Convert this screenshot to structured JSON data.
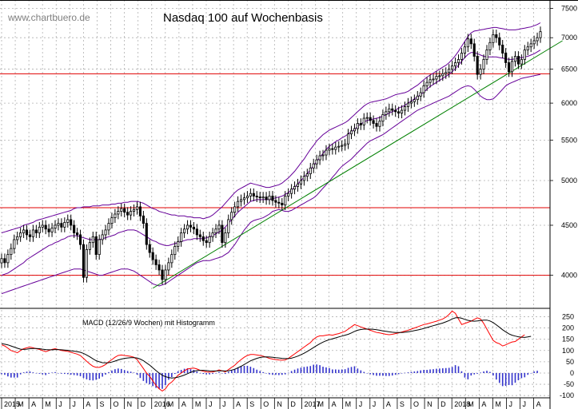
{
  "watermark": "www.chartbuero.de",
  "chart_data": [
    {
      "type": "candlestick",
      "title": "Nasdaq 100 auf Wochenbasis",
      "y_ticks": [
        4000,
        4500,
        5000,
        5500,
        6000,
        6500,
        7000,
        7500
      ],
      "y_tick_labels": [
        "4000",
        "4500",
        "5000",
        "5500",
        "6000",
        "6500",
        "7000",
        "7500"
      ],
      "ylim": [
        3700,
        7650
      ],
      "log_scale": true,
      "grid": true,
      "x_tick_labels": [
        "2015",
        "M",
        "A",
        "M",
        "J",
        "J",
        "A",
        "S",
        "O",
        "N",
        "D",
        "2016",
        "M",
        "A",
        "M",
        "J",
        "J",
        "A",
        "S",
        "O",
        "N",
        "D",
        "2017",
        "M",
        "A",
        "M",
        "J",
        "J",
        "A",
        "S",
        "O",
        "N",
        "D",
        "2018",
        "M",
        "A",
        "M",
        "J",
        "J",
        "A"
      ],
      "horizontal_lines": [
        4000,
        4690,
        6430
      ],
      "trendline": {
        "from": {
          "week": 48,
          "value": 3880
        },
        "to": {
          "week": 178,
          "value": 6950
        }
      },
      "weekly_close": [
        4160,
        4120,
        4200,
        4260,
        4350,
        4380,
        4420,
        4450,
        4400,
        4380,
        4450,
        4420,
        4480,
        4500,
        4460,
        4430,
        4470,
        4500,
        4520,
        4480,
        4530,
        4560,
        4500,
        4420,
        4400,
        4300,
        3980,
        4250,
        4320,
        4380,
        4200,
        4350,
        4400,
        4450,
        4520,
        4580,
        4620,
        4650,
        4680,
        4640,
        4610,
        4650,
        4670,
        4700,
        4600,
        4520,
        4300,
        4220,
        4150,
        4100,
        4050,
        3960,
        4050,
        4120,
        4200,
        4280,
        4330,
        4420,
        4460,
        4500,
        4480,
        4460,
        4400,
        4380,
        4340,
        4320,
        4380,
        4420,
        4460,
        4500,
        4320,
        4420,
        4560,
        4640,
        4700,
        4760,
        4780,
        4800,
        4820,
        4850,
        4820,
        4810,
        4800,
        4810,
        4780,
        4820,
        4770,
        4750,
        4740,
        4720,
        4820,
        4850,
        4900,
        4930,
        4960,
        5000,
        5050,
        5080,
        5150,
        5200,
        5250,
        5300,
        5310,
        5370,
        5390,
        5380,
        5410,
        5420,
        5430,
        5450,
        5580,
        5620,
        5650,
        5720,
        5700,
        5790,
        5800,
        5760,
        5720,
        5680,
        5750,
        5840,
        5880,
        5920,
        5900,
        5880,
        5860,
        5900,
        5950,
        6000,
        6020,
        6050,
        6100,
        6150,
        6250,
        6300,
        6340,
        6350,
        6390,
        6400,
        6430,
        6450,
        6500,
        6550,
        6600,
        6650,
        6750,
        6850,
        6980,
        6900,
        6700,
        6420,
        6500,
        6650,
        6800,
        6920,
        7050,
        7000,
        6880,
        6750,
        6600,
        6460,
        6620,
        6700,
        6580,
        6650,
        6800,
        6850,
        6900,
        6950,
        7000,
        7100
      ],
      "upper_band": [
        4420,
        4430,
        4440,
        4450,
        4460,
        4470,
        4480,
        4500,
        4510,
        4520,
        4530,
        4550,
        4560,
        4570,
        4580,
        4590,
        4600,
        4610,
        4620,
        4630,
        4640,
        4650,
        4660,
        4680,
        4690,
        4690,
        4700,
        4700,
        4700,
        4710,
        4710,
        4710,
        4720,
        4720,
        4720,
        4730,
        4730,
        4740,
        4740,
        4750,
        4750,
        4760,
        4760,
        4760,
        4750,
        4740,
        4720,
        4700,
        4680,
        4670,
        4650,
        4640,
        4630,
        4620,
        4610,
        4610,
        4600,
        4600,
        4600,
        4590,
        4590,
        4580,
        4580,
        4580,
        4570,
        4580,
        4590,
        4610,
        4640,
        4670,
        4700,
        4740,
        4780,
        4820,
        4860,
        4890,
        4910,
        4930,
        4950,
        4970,
        4960,
        4950,
        4940,
        4930,
        4920,
        4920,
        4930,
        4940,
        4950,
        4970,
        5000,
        5030,
        5070,
        5110,
        5160,
        5210,
        5260,
        5320,
        5380,
        5430,
        5490,
        5530,
        5570,
        5600,
        5630,
        5650,
        5670,
        5690,
        5710,
        5730,
        5760,
        5800,
        5840,
        5880,
        5920,
        5960,
        5990,
        6010,
        6020,
        6030,
        6040,
        6050,
        6060,
        6080,
        6100,
        6120,
        6130,
        6140,
        6150,
        6170,
        6200,
        6230,
        6260,
        6300,
        6340,
        6380,
        6410,
        6440,
        6470,
        6500,
        6530,
        6560,
        6600,
        6650,
        6710,
        6780,
        6860,
        6940,
        7020,
        7080,
        7110,
        7120,
        7130,
        7140,
        7150,
        7160,
        7170,
        7170,
        7160,
        7150,
        7140,
        7130,
        7130,
        7130,
        7140,
        7150,
        7160,
        7170,
        7180,
        7200,
        7220,
        7250
      ],
      "lower_band": [
        3830,
        3840,
        3850,
        3860,
        3870,
        3880,
        3890,
        3900,
        3910,
        3920,
        3930,
        3940,
        3950,
        3960,
        3970,
        3980,
        3990,
        4000,
        4010,
        4020,
        4030,
        4040,
        4050,
        4060,
        4060,
        4060,
        4050,
        4040,
        4030,
        4020,
        4010,
        4000,
        4000,
        4010,
        4020,
        4030,
        4040,
        4050,
        4060,
        4060,
        4060,
        4050,
        4040,
        4020,
        4000,
        3980,
        3960,
        3940,
        3920,
        3910,
        3900,
        3910,
        3920,
        3940,
        3960,
        3980,
        4000,
        4020,
        4040,
        4060,
        4080,
        4100,
        4120,
        4130,
        4140,
        4140,
        4140,
        4150,
        4160,
        4170,
        4180,
        4200,
        4220,
        4260,
        4300,
        4350,
        4400,
        4450,
        4490,
        4530,
        4550,
        4560,
        4570,
        4580,
        4600,
        4620,
        4650,
        4660,
        4670,
        4660,
        4650,
        4650,
        4660,
        4680,
        4700,
        4720,
        4740,
        4760,
        4780,
        4800,
        4830,
        4870,
        4910,
        4950,
        4990,
        5040,
        5080,
        5130,
        5170,
        5200,
        5230,
        5260,
        5300,
        5340,
        5380,
        5420,
        5460,
        5490,
        5510,
        5530,
        5550,
        5570,
        5600,
        5630,
        5660,
        5690,
        5720,
        5750,
        5780,
        5810,
        5840,
        5870,
        5900,
        5920,
        5940,
        5960,
        5980,
        6000,
        6020,
        6040,
        6060,
        6080,
        6100,
        6130,
        6160,
        6190,
        6220,
        6240,
        6250,
        6240,
        6200,
        6150,
        6100,
        6070,
        6050,
        6050,
        6060,
        6100,
        6150,
        6200,
        6250,
        6280,
        6300,
        6320,
        6340,
        6360,
        6370,
        6380,
        6390,
        6400,
        6410,
        6420
      ],
      "ma_line": [
        4000,
        4010,
        4020,
        4040,
        4060,
        4080,
        4100,
        4120,
        4150,
        4170,
        4190,
        4210,
        4230,
        4250,
        4270,
        4290,
        4300,
        4320,
        4330,
        4350,
        4360,
        4380,
        4390,
        4390,
        4390,
        4380,
        4370,
        4360,
        4350,
        4350,
        4350,
        4350,
        4360,
        4370,
        4380,
        4390,
        4400,
        4420,
        4430,
        4440,
        4450,
        4450,
        4450,
        4440,
        4420,
        4400,
        4380,
        4360,
        4340,
        4330,
        4310,
        4300,
        4290,
        4290,
        4300,
        4310,
        4320,
        4330,
        4340,
        4350,
        4350,
        4360,
        4360,
        4360,
        4360,
        4370,
        4380,
        4390,
        4410,
        4430,
        4450,
        4480,
        4520,
        4560,
        4600,
        4640,
        4670,
        4700,
        4730,
        4760,
        4770,
        4780,
        4780,
        4780,
        4780,
        4780,
        4790,
        4800,
        4810,
        4820,
        4840,
        4860,
        4890,
        4920,
        4960,
        5000,
        5040,
        5080,
        5130,
        5180,
        5230,
        5280,
        5330,
        5380,
        5420,
        5450,
        5480,
        5500,
        5530,
        5550,
        5580,
        5610,
        5640,
        5680,
        5710,
        5740,
        5760,
        5770,
        5780,
        5790,
        5800,
        5820,
        5840,
        5860,
        5880,
        5900,
        5930,
        5950,
        5970,
        6000,
        6030,
        6060,
        6090,
        6120,
        6160,
        6200,
        6240,
        6270,
        6300,
        6330,
        6360,
        6390,
        6420,
        6460,
        6510,
        6560,
        6620,
        6680,
        6730,
        6760,
        6760,
        6740,
        6720,
        6700,
        6690,
        6690,
        6690,
        6690,
        6680,
        6670,
        6660,
        6650,
        6650,
        6660,
        6670,
        6680,
        6690,
        6700,
        6720,
        6740,
        6770,
        6800
      ]
    },
    {
      "type": "line",
      "title": "MACD (12/26/9 Wochen) mit Histogramm",
      "y_ticks": [
        -100,
        -50,
        0,
        50,
        100,
        150,
        200,
        250
      ],
      "y_tick_labels": [
        "-100",
        "-50",
        "0",
        "50",
        "100",
        "150",
        "200",
        "250"
      ],
      "ylim": [
        -110,
        280
      ],
      "grid": true,
      "series": [
        {
          "color": "#ff0000",
          "values": [
            125,
            120,
            110,
            100,
            95,
            90,
            100,
            108,
            112,
            115,
            112,
            108,
            105,
            100,
            95,
            100,
            105,
            108,
            104,
            100,
            98,
            96,
            92,
            88,
            84,
            78,
            65,
            52,
            40,
            30,
            25,
            25,
            30,
            38,
            50,
            60,
            70,
            78,
            80,
            78,
            76,
            74,
            70,
            60,
            40,
            20,
            0,
            -15,
            -35,
            -55,
            -70,
            -80,
            -70,
            -50,
            -40,
            -25,
            -10,
            0,
            10,
            18,
            20,
            22,
            18,
            12,
            8,
            5,
            4,
            5,
            8,
            14,
            10,
            5,
            15,
            25,
            35,
            48,
            60,
            70,
            78,
            82,
            82,
            80,
            78,
            75,
            70,
            65,
            62,
            60,
            58,
            57,
            58,
            65,
            75,
            85,
            95,
            105,
            115,
            125,
            135,
            150,
            160,
            165,
            165,
            168,
            170,
            168,
            172,
            175,
            180,
            185,
            195,
            205,
            215,
            210,
            205,
            200,
            195,
            190,
            185,
            180,
            178,
            175,
            172,
            170,
            172,
            175,
            178,
            182,
            186,
            190,
            195,
            200,
            205,
            210,
            215,
            218,
            222,
            226,
            230,
            235,
            240,
            248,
            260,
            275,
            265,
            240,
            215,
            220,
            225,
            230,
            238,
            245,
            240,
            220,
            195,
            170,
            145,
            135,
            130,
            120,
            125,
            132,
            138,
            140,
            150,
            160,
            170
          ],
          "name": ""
        },
        {
          "color": "#000000",
          "values": [
            130,
            128,
            125,
            120,
            115,
            110,
            106,
            105,
            106,
            108,
            109,
            109,
            108,
            106,
            104,
            103,
            103,
            104,
            104,
            103,
            102,
            101,
            99,
            97,
            95,
            92,
            87,
            80,
            72,
            63,
            55,
            50,
            46,
            45,
            46,
            49,
            53,
            58,
            62,
            65,
            67,
            68,
            68,
            67,
            62,
            55,
            45,
            35,
            23,
            11,
            0,
            -10,
            -16,
            -20,
            -22,
            -21,
            -18,
            -14,
            -9,
            -3,
            3,
            8,
            11,
            12,
            12,
            11,
            10,
            9,
            9,
            10,
            10,
            9,
            10,
            13,
            17,
            23,
            30,
            38,
            46,
            54,
            60,
            65,
            69,
            71,
            72,
            71,
            70,
            68,
            67,
            65,
            64,
            64,
            66,
            70,
            75,
            81,
            88,
            96,
            104,
            113,
            122,
            130,
            137,
            143,
            148,
            152,
            156,
            160,
            164,
            168,
            172,
            178,
            185,
            190,
            193,
            195,
            195,
            195,
            194,
            192,
            190,
            187,
            185,
            183,
            181,
            180,
            180,
            180,
            181,
            183,
            185,
            188,
            191,
            194,
            198,
            202,
            206,
            210,
            214,
            218,
            222,
            227,
            233,
            240,
            245,
            246,
            243,
            238,
            234,
            231,
            230,
            231,
            233,
            235,
            235,
            231,
            224,
            214,
            203,
            192,
            183,
            174,
            168,
            164,
            161,
            159,
            158,
            160,
            163
          ],
          "name": ""
        }
      ],
      "histogram": [
        -5,
        -8,
        -15,
        -20,
        -20,
        -20,
        -6,
        3,
        6,
        7,
        3,
        -1,
        -3,
        -6,
        -9,
        -3,
        2,
        4,
        0,
        -3,
        -4,
        -5,
        -7,
        -9,
        -11,
        -14,
        -22,
        -28,
        -32,
        -33,
        -30,
        -25,
        -16,
        -7,
        4,
        11,
        17,
        20,
        18,
        13,
        9,
        6,
        2,
        -7,
        -22,
        -35,
        -45,
        -50,
        -58,
        -66,
        -70,
        -70,
        -54,
        -30,
        -18,
        -4,
        8,
        14,
        19,
        21,
        17,
        14,
        7,
        0,
        -4,
        -6,
        -6,
        -4,
        -1,
        4,
        0,
        -4,
        5,
        12,
        18,
        25,
        30,
        32,
        32,
        28,
        22,
        15,
        9,
        4,
        -2,
        -6,
        -8,
        -8,
        -9,
        -8,
        -6,
        1,
        9,
        15,
        20,
        24,
        27,
        29,
        31,
        37,
        38,
        35,
        28,
        25,
        22,
        16,
        16,
        15,
        16,
        17,
        23,
        27,
        30,
        20,
        12,
        5,
        0,
        -5,
        -9,
        -12,
        -12,
        -12,
        -13,
        -13,
        -11,
        -8,
        -5,
        -2,
        1,
        3,
        5,
        7,
        9,
        12,
        14,
        14,
        16,
        17,
        19,
        20,
        21,
        22,
        23,
        27,
        35,
        30,
        8,
        -20,
        -28,
        -11,
        -6,
        -3,
        2,
        7,
        10,
        5,
        -11,
        -29,
        -44,
        -58,
        -57,
        -53,
        -54,
        -43,
        -32,
        -23,
        -19,
        -8,
        0,
        7,
        10
      ],
      "histogram_color": "#3333cc"
    }
  ]
}
